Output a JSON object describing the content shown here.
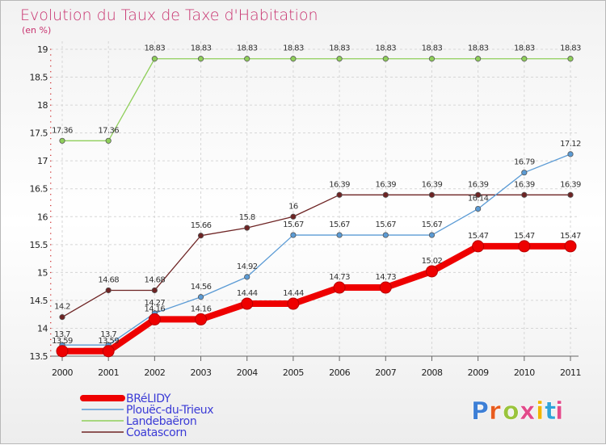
{
  "chart_data": {
    "type": "line",
    "title": "Evolution du Taux de Taxe d'Habitation",
    "subtitle": "(en %)",
    "x": [
      "2000",
      "2001",
      "2002",
      "2003",
      "2004",
      "2005",
      "2006",
      "2007",
      "2008",
      "2009",
      "2010",
      "2011"
    ],
    "ylim": [
      13.5,
      19
    ],
    "yticks": [
      "13.5",
      "14",
      "14.5",
      "15",
      "15.5",
      "16",
      "16.5",
      "17",
      "17.5",
      "18",
      "18.5",
      "19"
    ],
    "grid": true,
    "legend_position": "bottom-left",
    "series": [
      {
        "name": "BRéLIDY",
        "color": "#ee0000",
        "values": [
          13.59,
          13.59,
          14.16,
          14.16,
          14.44,
          14.44,
          14.73,
          14.73,
          15.02,
          15.47,
          15.47,
          15.47
        ],
        "labels": [
          "13.59",
          "13.59",
          "14.16",
          "14.16",
          "14.44",
          "14.44",
          "14.73",
          "14.73",
          "15.02",
          "15.47",
          "15.47",
          "15.47"
        ]
      },
      {
        "name": "Plouëc-du-Trieux",
        "color": "#5b9bd5",
        "values": [
          13.7,
          13.7,
          14.27,
          14.56,
          14.92,
          15.67,
          15.67,
          15.67,
          15.67,
          16.14,
          16.79,
          17.12
        ],
        "labels": [
          "13.7",
          "13.7",
          "14.27",
          "14.56",
          "14.92",
          "15.67",
          "15.67",
          "15.67",
          "15.67",
          "16.14",
          "16.79",
          "17.12"
        ]
      },
      {
        "name": "Landebaëron",
        "color": "#8fcf5a",
        "values": [
          17.36,
          17.36,
          18.83,
          18.83,
          18.83,
          18.83,
          18.83,
          18.83,
          18.83,
          18.83,
          18.83,
          18.83
        ],
        "labels": [
          "17.36",
          "17.36",
          "18.83",
          "18.83",
          "18.83",
          "18.83",
          "18.83",
          "18.83",
          "18.83",
          "18.83",
          "18.83",
          "18.83"
        ]
      },
      {
        "name": "Coatascorn",
        "color": "#6e2424",
        "values": [
          14.2,
          14.68,
          14.68,
          15.66,
          15.8,
          16.0,
          16.39,
          16.39,
          16.39,
          16.39,
          16.39,
          16.39
        ],
        "labels": [
          "14.2",
          "14.68",
          "14.68",
          "15.66",
          "15.8",
          "16",
          "16.39",
          "16.39",
          "16.39",
          "16.39",
          "16.39",
          "16.39"
        ]
      }
    ]
  },
  "logo": {
    "text": "Proxiti",
    "colors": [
      "#3d7fd6",
      "#e85c1e",
      "#9ac43c",
      "#e24a8a",
      "#f0b400",
      "#2fa3d8",
      "#e24a8a"
    ]
  }
}
